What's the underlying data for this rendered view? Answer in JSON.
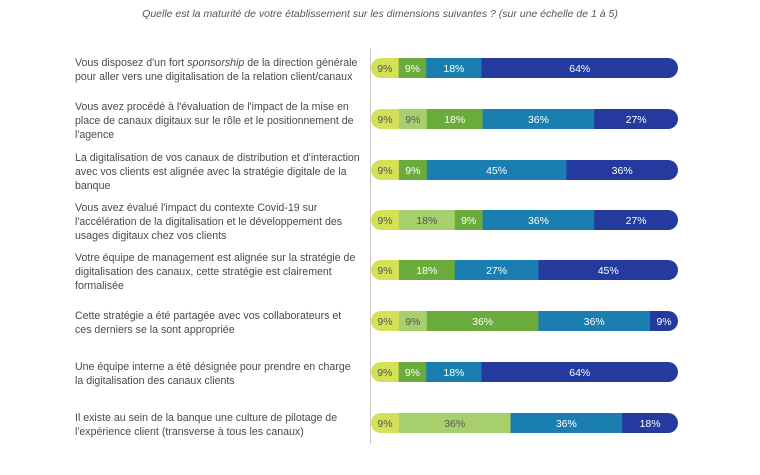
{
  "subtitle": "Quelle est la maturité de votre établissement sur les dimensions suivantes ? (sur une échelle de 1 à 5)",
  "chart_data": {
    "type": "bar",
    "orientation": "horizontal",
    "stacked": true,
    "title": "",
    "scale_colors": [
      "#d4e157",
      "#a7cf6c",
      "#6aab3c",
      "#1a7fb0",
      "#253a9e"
    ],
    "label_colors": [
      "#555555",
      "#555555",
      "#ffffff",
      "#ffffff",
      "#ffffff"
    ],
    "categories": [
      [
        "Vous disposez d'un fort ",
        "sponsorship",
        " de la direction générale pour aller vers une digitalisation de la relation client/canaux"
      ],
      "Vous avez procédé à l'évaluation de l'impact de la mise en place de canaux digitaux sur le rôle et le positionnement de l'agence",
      "La digitalisation de vos canaux de distribution et d'interaction avec vos clients est alignée avec la stratégie digitale de la banque",
      "Vous avez évalué l'impact du contexte Covid-19 sur l'accélération de la digitalisation et le développement des usages digitaux chez vos clients",
      "Votre équipe de management est alignée sur la stratégie de digitalisation des canaux, cette stratégie est clairement formalisée",
      "Cette stratégie a été partagée avec vos collaborateurs et ces derniers se la sont appropriée",
      "Une équipe interne a été désignée pour prendre en charge la digitalisation des canaux clients",
      "Il existe au sein de la banque une culture de pilotage de l'expérience client (transverse à tous les canaux)"
    ],
    "rows": [
      [
        9,
        0,
        9,
        18,
        64
      ],
      [
        9,
        9,
        18,
        36,
        27
      ],
      [
        9,
        0,
        9,
        45,
        36
      ],
      [
        9,
        18,
        9,
        36,
        27
      ],
      [
        9,
        0,
        18,
        27,
        45
      ],
      [
        9,
        9,
        36,
        36,
        9
      ],
      [
        9,
        0,
        9,
        18,
        64
      ],
      [
        9,
        36,
        0,
        36,
        18
      ]
    ]
  }
}
